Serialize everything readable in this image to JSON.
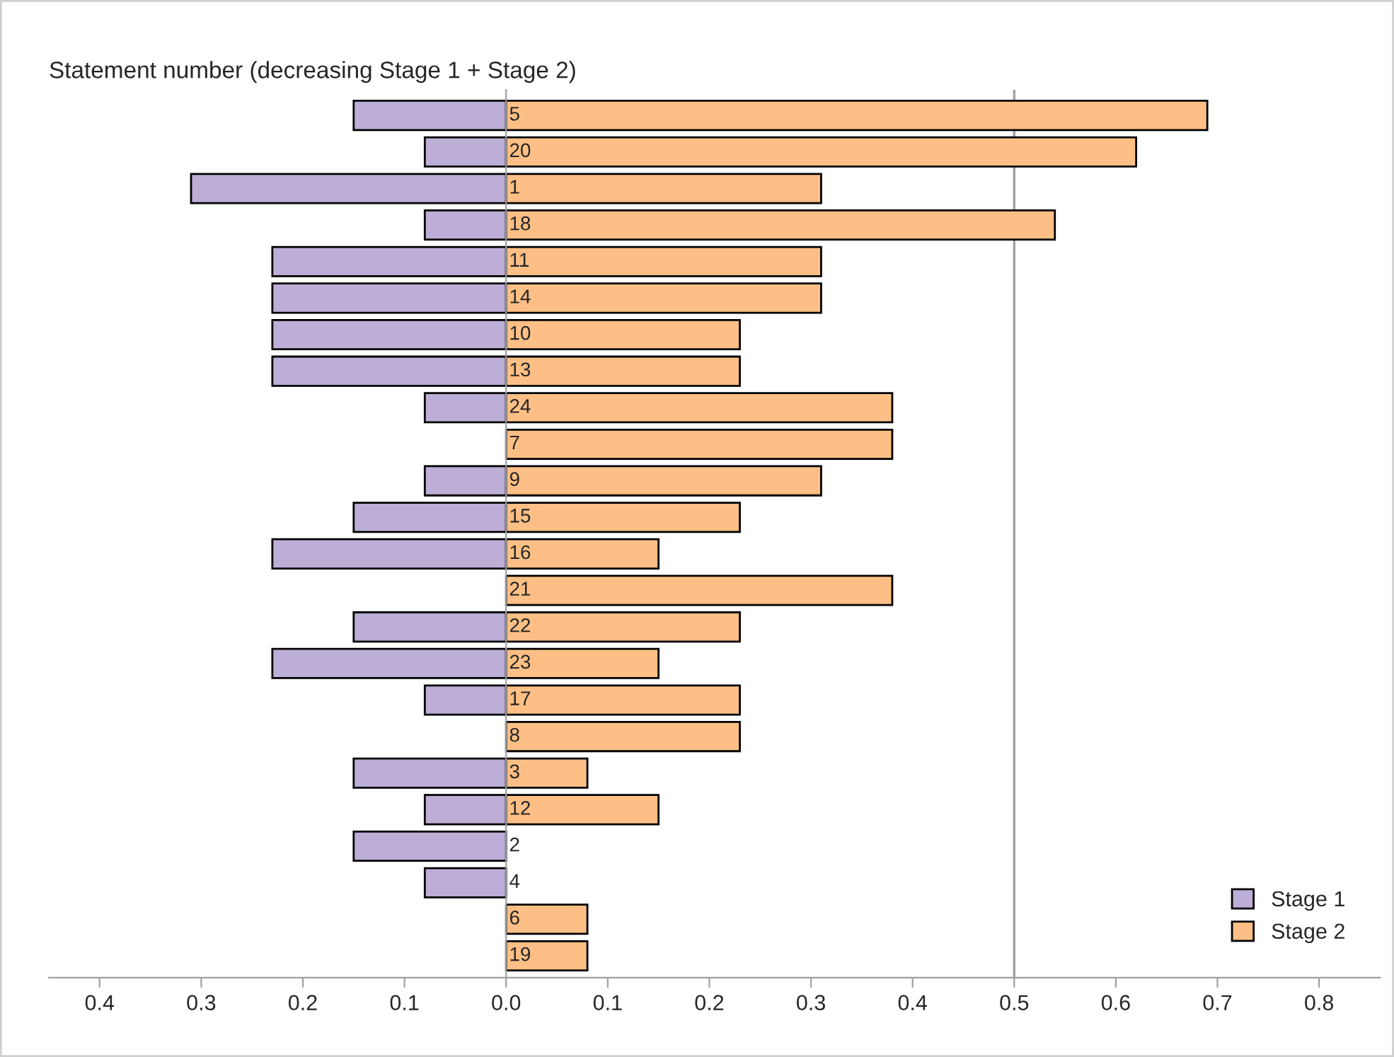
{
  "chart_data": {
    "type": "bar",
    "orientation": "horizontal",
    "stacked": true,
    "title": "Statement number (decreasing Stage 1 + Stage 2)",
    "categories": [
      "5",
      "20",
      "1",
      "18",
      "11",
      "14",
      "10",
      "13",
      "24",
      "7",
      "9",
      "15",
      "16",
      "21",
      "22",
      "23",
      "17",
      "8",
      "3",
      "12",
      "2",
      "4",
      "6",
      "19"
    ],
    "series": [
      {
        "name": "Stage 1",
        "color": "#bcaed6",
        "values": [
          -0.15,
          -0.08,
          -0.31,
          -0.08,
          -0.23,
          -0.23,
          -0.23,
          -0.23,
          -0.08,
          null,
          -0.08,
          -0.15,
          -0.23,
          null,
          -0.15,
          -0.23,
          -0.08,
          null,
          -0.15,
          -0.08,
          -0.15,
          -0.08,
          null,
          null
        ]
      },
      {
        "name": "Stage 2",
        "color": "#fdbf85",
        "values": [
          0.69,
          0.62,
          0.31,
          0.54,
          0.31,
          0.31,
          0.23,
          0.23,
          0.38,
          0.38,
          0.31,
          0.23,
          0.15,
          0.38,
          0.23,
          0.15,
          0.23,
          0.23,
          0.08,
          0.15,
          null,
          null,
          0.08,
          0.08
        ]
      }
    ],
    "xlim": [
      -0.45,
      0.86
    ],
    "xticks": [
      {
        "value": -0.4,
        "label": "0.4"
      },
      {
        "value": -0.3,
        "label": "0.3"
      },
      {
        "value": -0.2,
        "label": "0.2"
      },
      {
        "value": -0.1,
        "label": "0.1"
      },
      {
        "value": 0,
        "label": "0.0"
      },
      0.1,
      0.2,
      0.3,
      0.4,
      0.5,
      0.6,
      0.7,
      0.8
    ],
    "ref_lines": [
      {
        "axis": "x",
        "value": 0.5,
        "color": "#a0a0a0"
      }
    ],
    "grid": false,
    "legend": "bottom right"
  }
}
